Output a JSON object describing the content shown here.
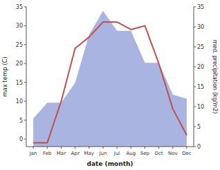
{
  "chart_data": {
    "type": "line",
    "categories": [
      "Jan",
      "Feb",
      "Mar",
      "Apr",
      "May",
      "Jun",
      "Jul",
      "Aug",
      "Sep",
      "Oct",
      "Nov",
      "Dec"
    ],
    "xlabel": "date (month)",
    "ylabel": "max temp (C)",
    "y2label": "med. precipitation (kg/m2)",
    "series": [
      {
        "type": "area",
        "axis": "y2",
        "color": "#aab4e0",
        "values": [
          7,
          11,
          11,
          16,
          28,
          34,
          29,
          29,
          21,
          21,
          13,
          12
        ]
      },
      {
        "type": "line",
        "color": "#c0504d",
        "values": [
          -1,
          -1,
          10,
          24,
          27,
          31,
          31,
          29,
          30,
          20,
          8,
          1
        ]
      }
    ],
    "ylim": [
      -2,
      35
    ],
    "yticks": [
      0,
      5,
      10,
      15,
      20,
      25,
      30,
      35
    ],
    "y2lim": [
      0,
      35
    ],
    "y2ticks": [
      0,
      5,
      10,
      15,
      20,
      25,
      30,
      35
    ],
    "grid": false
  }
}
